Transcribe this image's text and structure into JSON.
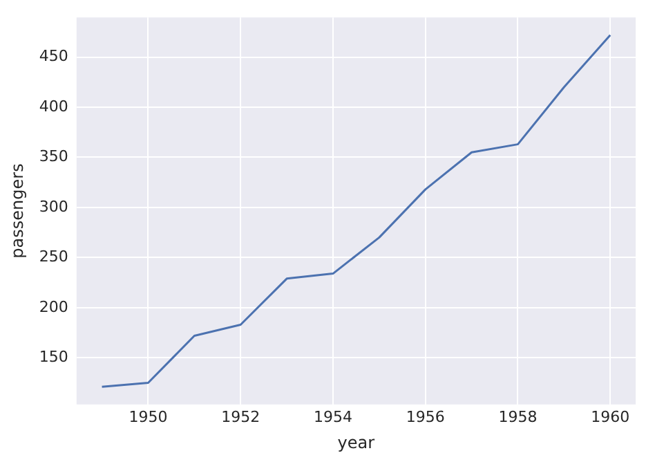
{
  "chart_data": {
    "type": "line",
    "xlabel": "year",
    "ylabel": "passengers",
    "x": [
      1949,
      1950,
      1951,
      1952,
      1953,
      1954,
      1955,
      1956,
      1957,
      1958,
      1959,
      1960
    ],
    "series": [
      {
        "color": "#4c72b0",
        "values": [
          121,
          125,
          172,
          183,
          229,
          234,
          270,
          318,
          355,
          363,
          420,
          472
        ]
      }
    ],
    "xlim": [
      1948.45,
      1960.55
    ],
    "xticks": [
      1950,
      1952,
      1954,
      1956,
      1958,
      1960
    ],
    "ylim": [
      103.45,
      489.55
    ],
    "yticks": [
      150,
      200,
      250,
      300,
      350,
      400,
      450
    ],
    "grid": true,
    "legend": false,
    "marker": "none",
    "line_style": "solid"
  }
}
